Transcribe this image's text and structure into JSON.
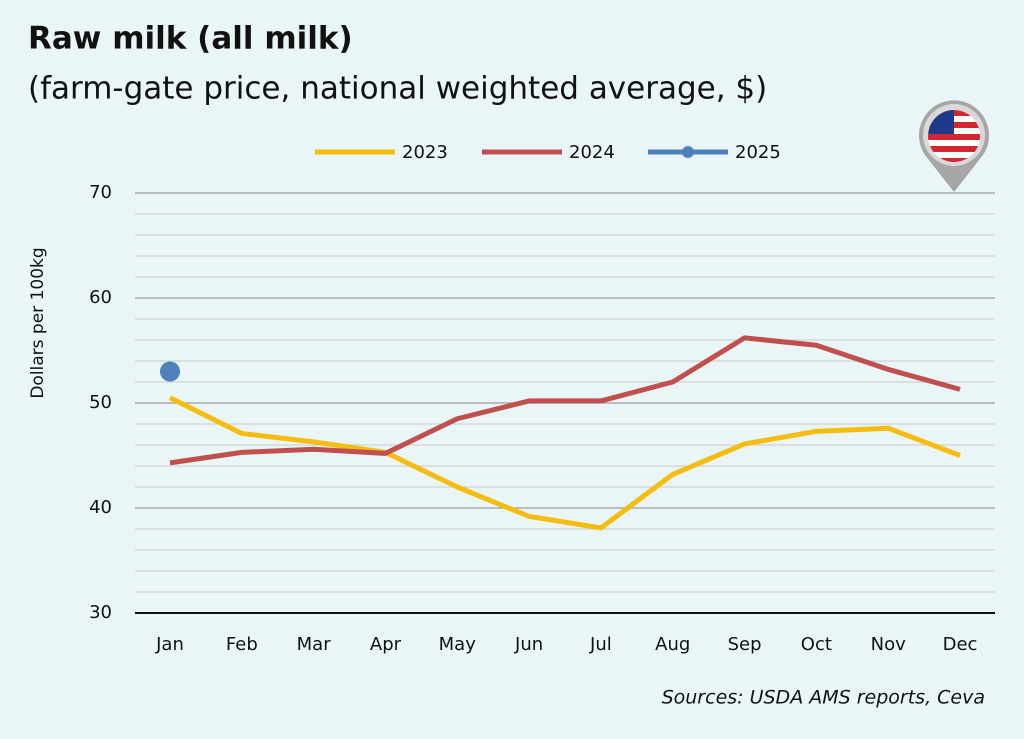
{
  "chart_data": {
    "type": "line",
    "title": "Raw milk (all milk)",
    "subtitle": "(farm-gate price, national weighted average, $)",
    "y_label": "Dollars per 100kg",
    "source": "Sources: USDA AMS reports, Ceva",
    "categories": [
      "Jan",
      "Feb",
      "Mar",
      "Apr",
      "May",
      "Jun",
      "Jul",
      "Aug",
      "Sep",
      "Oct",
      "Nov",
      "Dec"
    ],
    "series": [
      {
        "name": "2023",
        "color": "#f5bd0f",
        "marker": false,
        "values": [
          50.5,
          47.1,
          46.3,
          45.3,
          42.0,
          39.2,
          38.1,
          43.2,
          46.1,
          47.3,
          47.6,
          45.0
        ]
      },
      {
        "name": "2024",
        "color": "#c0504d",
        "marker": false,
        "values": [
          44.3,
          45.3,
          45.6,
          45.2,
          48.5,
          50.2,
          50.2,
          52.0,
          56.2,
          55.5,
          53.2,
          51.3
        ]
      },
      {
        "name": "2025",
        "color": "#4f81bd",
        "marker": true,
        "values": [
          53.0,
          null,
          null,
          null,
          null,
          null,
          null,
          null,
          null,
          null,
          null,
          null
        ]
      }
    ],
    "ylim": [
      30,
      70
    ],
    "yticks": [
      30,
      40,
      50,
      60,
      70
    ],
    "yminorticks": [
      32,
      34,
      36,
      38,
      42,
      44,
      46,
      48,
      52,
      54,
      56,
      58,
      62,
      64,
      66,
      68
    ],
    "grid": true,
    "legend": "top"
  }
}
